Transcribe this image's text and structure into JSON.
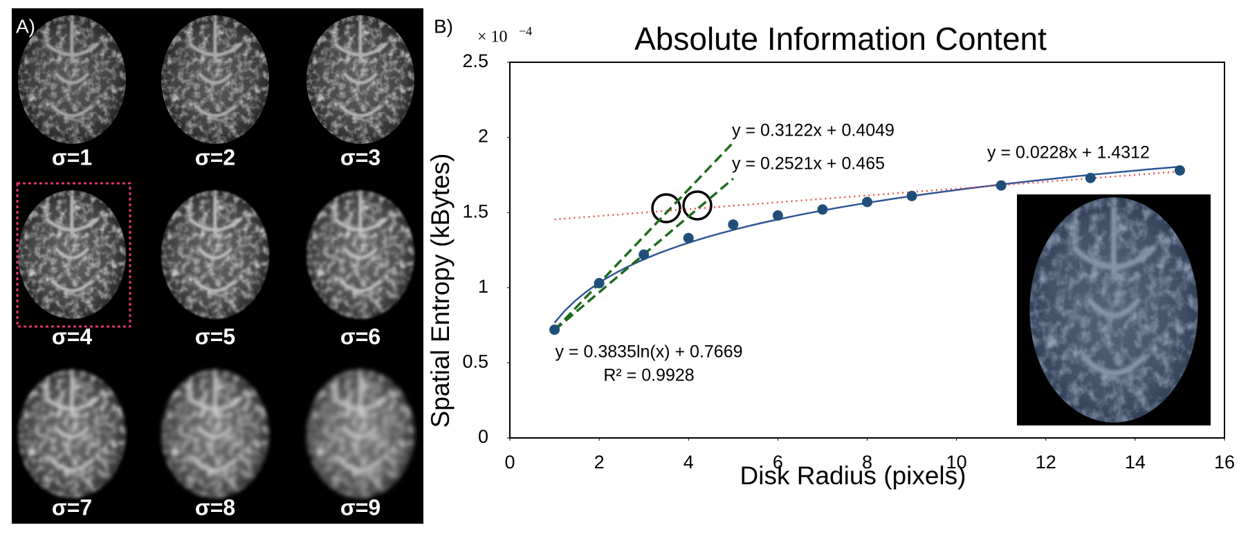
{
  "panel_a": {
    "label": "A)",
    "images": [
      "σ=1",
      "σ=2",
      "σ=3",
      "σ=4",
      "σ=5",
      "σ=6",
      "σ=7",
      "σ=8",
      "σ=9"
    ]
  },
  "chart_data": {
    "type": "scatter",
    "panel_label": "B)",
    "title": "Absolute Information Content",
    "x_label": "Disk Radius (pixels)",
    "y_label": "Spatial Entropy (kBytes)",
    "y_multiplier": "× 10",
    "y_multiplier_exp": "−4",
    "x": [
      1,
      2,
      3,
      4,
      5,
      6,
      7,
      8,
      9,
      11,
      13,
      15
    ],
    "values": [
      0.72,
      1.03,
      1.22,
      1.33,
      1.42,
      1.48,
      1.52,
      1.57,
      1.61,
      1.68,
      1.73,
      1.78
    ],
    "color": "#1f4e79",
    "xlim": [
      0,
      16
    ],
    "xticks": [
      0,
      2,
      4,
      6,
      8,
      10,
      12,
      14,
      16
    ],
    "ylim": [
      0,
      2.5
    ],
    "yticks": [
      0,
      0.5,
      1,
      1.5,
      2,
      2.5
    ],
    "trendlines": [
      {
        "kind": "log",
        "label": "y = 0.3835ln(x) + 0.7669",
        "r2_label": "R² = 0.9928",
        "a": 0.3835,
        "b": 0.7669,
        "x_extent": [
          1,
          15
        ],
        "color": "#2f5597"
      },
      {
        "kind": "linear",
        "label": "y = 0.3122x + 0.4049",
        "slope": 0.3122,
        "intercept": 0.4049,
        "x_extent": [
          1,
          5
        ],
        "color": "#1e6b1e"
      },
      {
        "kind": "linear",
        "label": "y = 0.2521x + 0.465",
        "slope": 0.2521,
        "intercept": 0.465,
        "x_extent": [
          1,
          5
        ],
        "color": "#1e6b1e"
      },
      {
        "kind": "linear",
        "label": "y = 0.0228x + 1.4312",
        "slope": 0.0228,
        "intercept": 1.4312,
        "x_extent": [
          1,
          15
        ],
        "color": "#e8504a"
      }
    ]
  }
}
